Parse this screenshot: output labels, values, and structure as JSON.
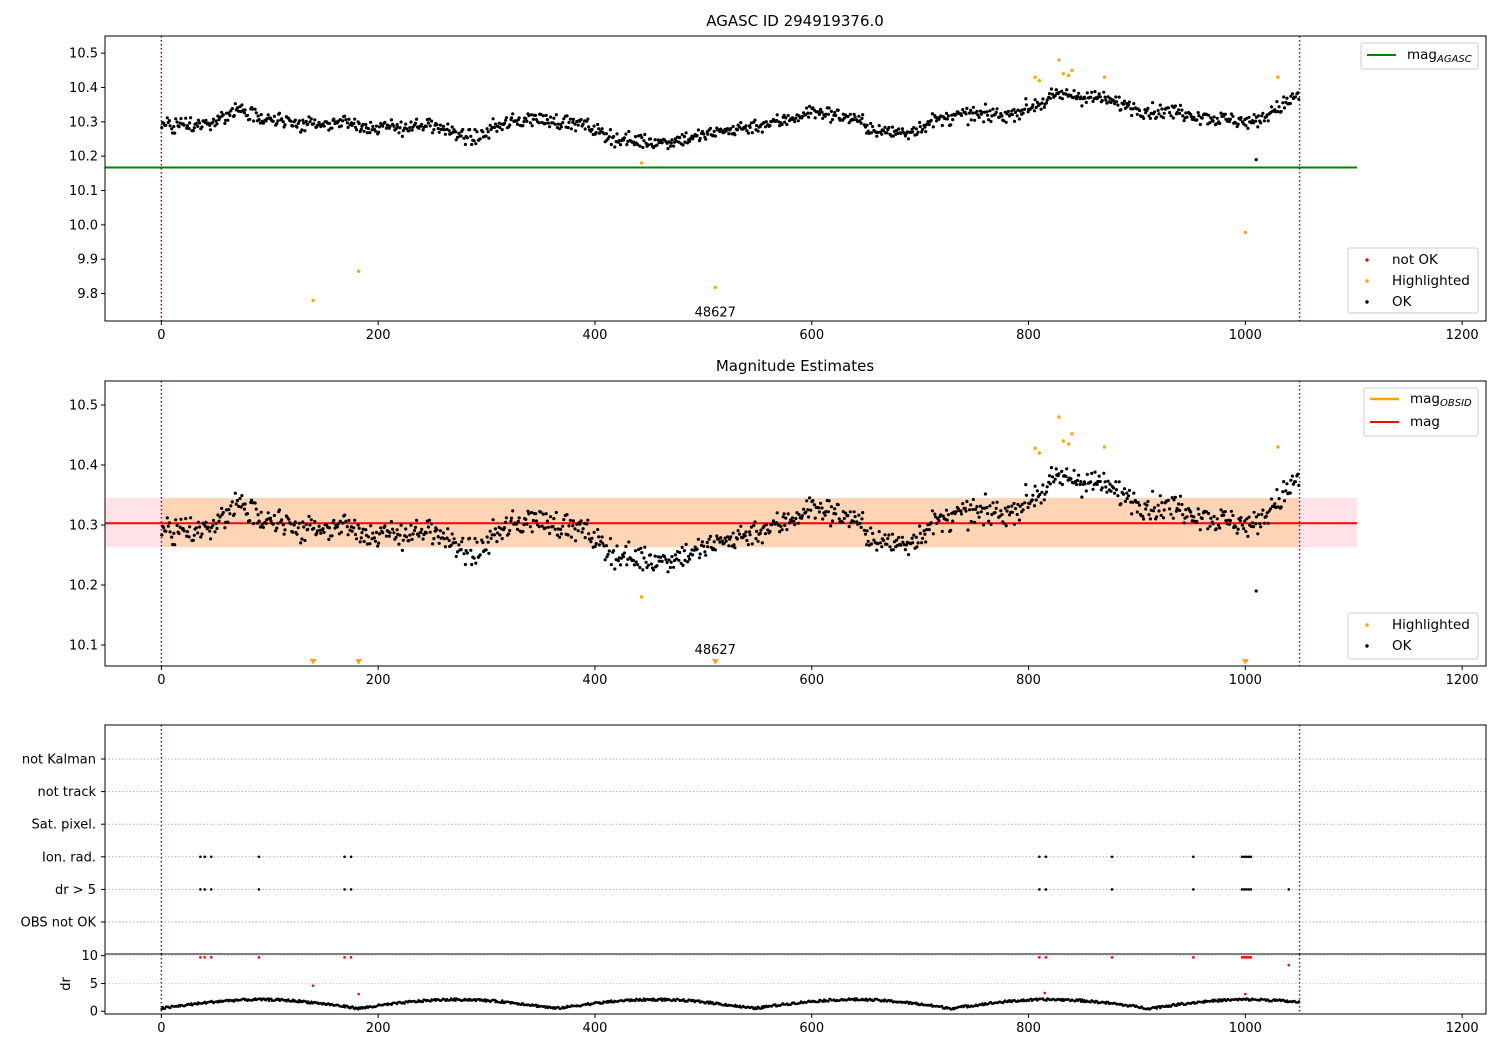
{
  "chart_data": [
    {
      "type": "scatter",
      "title": "AGASC ID 294919376.0",
      "xlim": [
        -52,
        1222
      ],
      "ylim": [
        9.72,
        10.55
      ],
      "xticks": [
        0,
        200,
        400,
        600,
        800,
        1000,
        1200
      ],
      "yticks": [
        9.8,
        9.9,
        10.0,
        10.1,
        10.2,
        10.3,
        10.4,
        10.5
      ],
      "vlines": [
        0,
        1050
      ],
      "hline": {
        "name": "mag_AGASC",
        "value": 10.167,
        "x": [
          -52,
          1103
        ],
        "color": "#008000"
      },
      "highlighted_points": [
        [
          140,
          9.78
        ],
        [
          182,
          9.865
        ],
        [
          511,
          9.818
        ],
        [
          443,
          10.18
        ],
        [
          806,
          10.43
        ],
        [
          810,
          10.42
        ],
        [
          828,
          10.48
        ],
        [
          832,
          10.44
        ],
        [
          837,
          10.435
        ],
        [
          840,
          10.45
        ],
        [
          870,
          10.43
        ],
        [
          1000,
          9.978
        ],
        [
          1030,
          10.43
        ]
      ],
      "outlier_points": [
        [
          1010,
          10.19
        ]
      ],
      "annotation": {
        "text": "48627",
        "x": 511,
        "y": 9.745
      },
      "line_legend": [
        {
          "label": "mag",
          "subscript": "AGASC",
          "color": "#008000"
        }
      ],
      "point_legend": [
        {
          "label": "not OK",
          "color": "#ff0000"
        },
        {
          "label": "Highlighted",
          "color": "#ffa500"
        },
        {
          "label": "OK",
          "color": "#000000"
        }
      ]
    },
    {
      "type": "scatter",
      "title": "Magnitude Estimates",
      "xlim": [
        -52,
        1222
      ],
      "ylim": [
        10.065,
        10.54
      ],
      "xticks": [
        0,
        200,
        400,
        600,
        800,
        1000,
        1200
      ],
      "yticks": [
        10.1,
        10.2,
        10.3,
        10.4,
        10.5
      ],
      "vlines": [
        0,
        1050
      ],
      "mag": {
        "value": 10.303,
        "band": [
          10.263,
          10.345
        ],
        "x": [
          -52,
          1103
        ],
        "color": "#ff0000"
      },
      "highlighted_points": [
        [
          443,
          10.18
        ],
        [
          806,
          10.428
        ],
        [
          810,
          10.42
        ],
        [
          828,
          10.48
        ],
        [
          832,
          10.44
        ],
        [
          837,
          10.435
        ],
        [
          840,
          10.452
        ],
        [
          870,
          10.43
        ],
        [
          1030,
          10.43
        ]
      ],
      "outlier_points": [
        [
          1010,
          10.19
        ]
      ],
      "below_axis_markers": [
        140,
        182,
        511,
        1000
      ],
      "annotation": {
        "text": "48627",
        "x": 511,
        "y": 10.075
      },
      "line_legend": [
        {
          "label": "mag",
          "subscript": "OBSID",
          "color": "#ffa500"
        },
        {
          "label": "mag",
          "subscript": "",
          "color": "#ff0000"
        }
      ],
      "point_legend": [
        {
          "label": "Highlighted",
          "color": "#ffa500"
        },
        {
          "label": "OK",
          "color": "#000000"
        }
      ]
    },
    {
      "type": "scatter",
      "title": "",
      "xlim": [
        -52,
        1222
      ],
      "xticks": [
        0,
        200,
        400,
        600,
        800,
        1000,
        1200
      ],
      "vlines": [
        0,
        1050
      ],
      "flag_rows": [
        "not Kalman",
        "not track",
        "Sat. pixel.",
        "Ion. rad.",
        "dr > 5",
        "OBS not OK"
      ],
      "flags": {
        "Ion. rad.": [
          36,
          40,
          46,
          90,
          169,
          175,
          810,
          816,
          877,
          952,
          997,
          999,
          1001,
          1003,
          1005
        ],
        "dr > 5": [
          36,
          40,
          46,
          90,
          169,
          175,
          810,
          816,
          877,
          952,
          997,
          999,
          1001,
          1003,
          1005,
          1040
        ]
      },
      "dr": {
        "ylabel": "dr",
        "ylim": [
          -0.5,
          10.3
        ],
        "yticks": [
          0,
          5,
          10
        ],
        "high_points": [
          [
            36,
            9.7
          ],
          [
            40,
            9.7
          ],
          [
            46,
            9.7
          ],
          [
            90,
            9.7
          ],
          [
            169,
            9.7
          ],
          [
            175,
            9.7
          ],
          [
            810,
            9.7
          ],
          [
            816,
            9.7
          ],
          [
            877,
            9.7
          ],
          [
            952,
            9.7
          ],
          [
            997,
            9.7
          ],
          [
            999,
            9.7
          ],
          [
            1001,
            9.7
          ],
          [
            1003,
            9.7
          ],
          [
            1005,
            9.7
          ],
          [
            1040,
            8.3
          ],
          [
            140,
            4.6
          ],
          [
            182,
            3.1
          ],
          [
            815,
            3.3
          ],
          [
            1000,
            3.1
          ]
        ]
      }
    }
  ]
}
